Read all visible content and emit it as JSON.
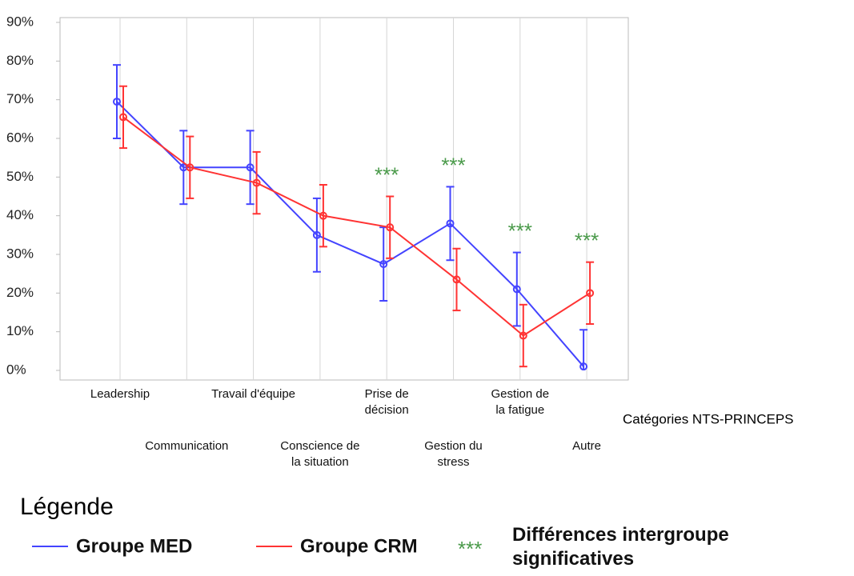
{
  "chart_data": {
    "type": "line",
    "categories": [
      "Leadership",
      "Communication",
      "Travail d'équipe",
      "Conscience de\nla situation",
      "Prise de\ndécision",
      "Gestion du\nstress",
      "Gestion de\nla fatigue",
      "Autre"
    ],
    "series": [
      {
        "name": "Groupe MED",
        "color": "#4444ff",
        "values": [
          69.5,
          52.5,
          52.5,
          35,
          27.5,
          38,
          21,
          1
        ],
        "errors": [
          9.5,
          9.5,
          9.5,
          9.5,
          9.5,
          9.5,
          9.5,
          9.5
        ]
      },
      {
        "name": "Groupe CRM",
        "color": "#ff3333",
        "values": [
          65.5,
          52.5,
          48.5,
          40,
          37,
          23.5,
          9,
          20
        ],
        "errors": [
          8,
          8,
          8,
          8,
          8,
          8,
          8,
          8
        ]
      }
    ],
    "ylim": [
      0,
      90
    ],
    "yticks": [
      {
        "value": 0,
        "label": "0%"
      },
      {
        "value": 10,
        "label": "10%"
      },
      {
        "value": 20,
        "label": "20%"
      },
      {
        "value": 30,
        "label": "30%"
      },
      {
        "value": 40,
        "label": "40%"
      },
      {
        "value": 50,
        "label": "50%"
      },
      {
        "value": 60,
        "label": "60%"
      },
      {
        "value": 70,
        "label": "70%"
      },
      {
        "value": 80,
        "label": "80%"
      },
      {
        "value": 90,
        "label": "90%"
      }
    ],
    "x_label": "Catégories NTS-PRINCEPS",
    "significance_marker": "***",
    "significance_color": "#4a9a4a",
    "significant": [
      false,
      false,
      false,
      false,
      true,
      true,
      true,
      true
    ],
    "significance_label": "Différences intergroupe\nsignificatives",
    "legend_title": "Légende",
    "grid": true
  }
}
